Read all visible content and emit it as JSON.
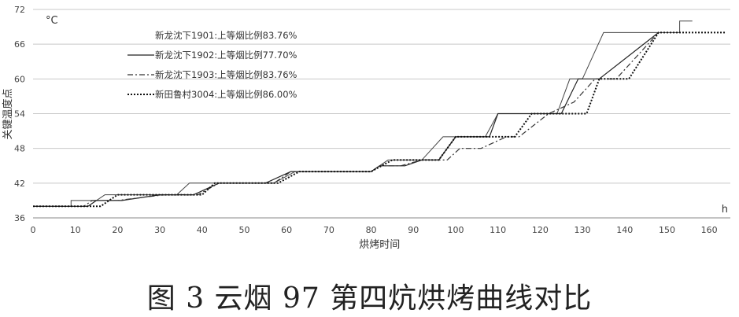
{
  "caption": "图 3  云烟 97 第四炕烘烤曲线对比",
  "chart_data": {
    "type": "line",
    "xlabel": "烘烤时间",
    "ylabel": "关键温度点",
    "x_unit": "h",
    "y_unit": "°C",
    "xlim": [
      0,
      165
    ],
    "ylim": [
      36,
      72
    ],
    "x_ticks": [
      0,
      10,
      20,
      30,
      40,
      50,
      60,
      70,
      80,
      90,
      100,
      110,
      120,
      130,
      140,
      150,
      160
    ],
    "y_ticks": [
      36,
      42,
      48,
      54,
      60,
      66,
      72
    ],
    "grid": "horizontal",
    "legend_position": "top-left",
    "series": [
      {
        "name": "新龙沈下1901:上等烟比例83.76%",
        "style": "solid-thin",
        "x": [
          0,
          9,
          9,
          15,
          17,
          34,
          37,
          57,
          62,
          80,
          84,
          92,
          97,
          107,
          110,
          117,
          120,
          124,
          127,
          130,
          135,
          148,
          150,
          153,
          153,
          156
        ],
        "y": [
          38,
          38,
          39,
          39,
          40,
          40,
          42,
          42,
          44,
          44,
          46,
          46,
          50,
          50,
          54,
          54,
          54,
          54,
          60,
          60,
          68,
          68,
          68,
          68,
          70,
          70
        ]
      },
      {
        "name": "新龙沈下1902:上等烟比例77.70%",
        "style": "solid",
        "x": [
          0,
          9,
          13,
          15,
          21,
          30,
          38,
          44,
          55,
          61,
          80,
          82,
          88,
          92,
          96,
          100,
          108,
          110,
          125,
          129,
          134,
          148
        ],
        "y": [
          38,
          38,
          38,
          39,
          39,
          40,
          40,
          42,
          42,
          44,
          44,
          45,
          45,
          46,
          46,
          50,
          50,
          54,
          54,
          60,
          60,
          68
        ]
      },
      {
        "name": "新龙沈下1903:上等烟比例83.76%",
        "style": "dash-dot",
        "x": [
          0,
          12,
          14,
          20,
          31,
          39,
          44,
          57,
          59,
          61,
          80,
          82,
          87,
          92,
          98,
          101,
          106,
          112,
          115,
          122,
          128,
          133,
          138,
          148
        ],
        "y": [
          38,
          38,
          39,
          39,
          40,
          40,
          42,
          42,
          43,
          44,
          44,
          45,
          45,
          46,
          46,
          48,
          48,
          50,
          50,
          54,
          56,
          60,
          60,
          68
        ]
      },
      {
        "name": "新田鲁村3004:上等烟比例86.00%",
        "style": "dotted",
        "x": [
          0,
          16,
          20,
          40,
          43,
          58,
          63,
          80,
          85,
          96,
          100,
          104,
          114,
          118,
          131,
          134,
          141,
          148,
          164
        ],
        "y": [
          38,
          38,
          40,
          40,
          42,
          42,
          44,
          44,
          46,
          46,
          50,
          50,
          50,
          54,
          54,
          60,
          60,
          68,
          68
        ]
      }
    ]
  }
}
